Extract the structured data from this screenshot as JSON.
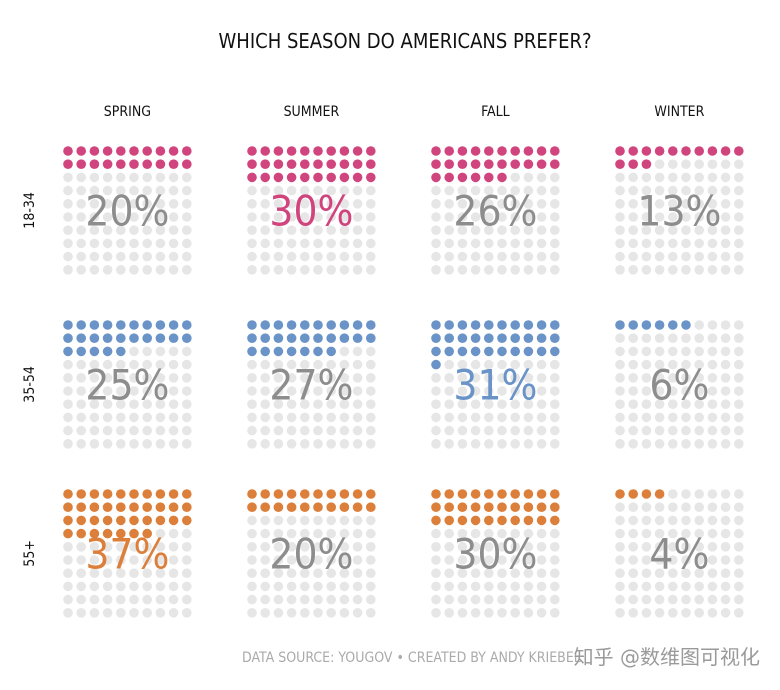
{
  "chart_data": {
    "type": "waffle",
    "title": "WHICH SEASON DO AMERICANS PREFER?",
    "categories": [
      "SPRING",
      "SUMMER",
      "FALL",
      "WINTER"
    ],
    "series": [
      {
        "name": "18-34",
        "color": "#d1457e",
        "values": [
          20,
          30,
          26,
          13
        ],
        "highlight": "SUMMER"
      },
      {
        "name": "35-54",
        "color": "#6a93c8",
        "values": [
          25,
          27,
          31,
          6
        ],
        "highlight": "FALL"
      },
      {
        "name": "55+",
        "color": "#dc7f3a",
        "values": [
          37,
          20,
          30,
          4
        ],
        "highlight": "SPRING"
      }
    ],
    "value_format": "percent",
    "grid": {
      "rows": 10,
      "cols": 10,
      "total": 100
    },
    "empty_dot_color": "#e6e6e6",
    "label_color": "#8d8d8d",
    "source": "DATA SOURCE: YOUGOV • CREATED BY ANDY KRIEBEL"
  },
  "watermark": "知乎 @数维图可视化"
}
